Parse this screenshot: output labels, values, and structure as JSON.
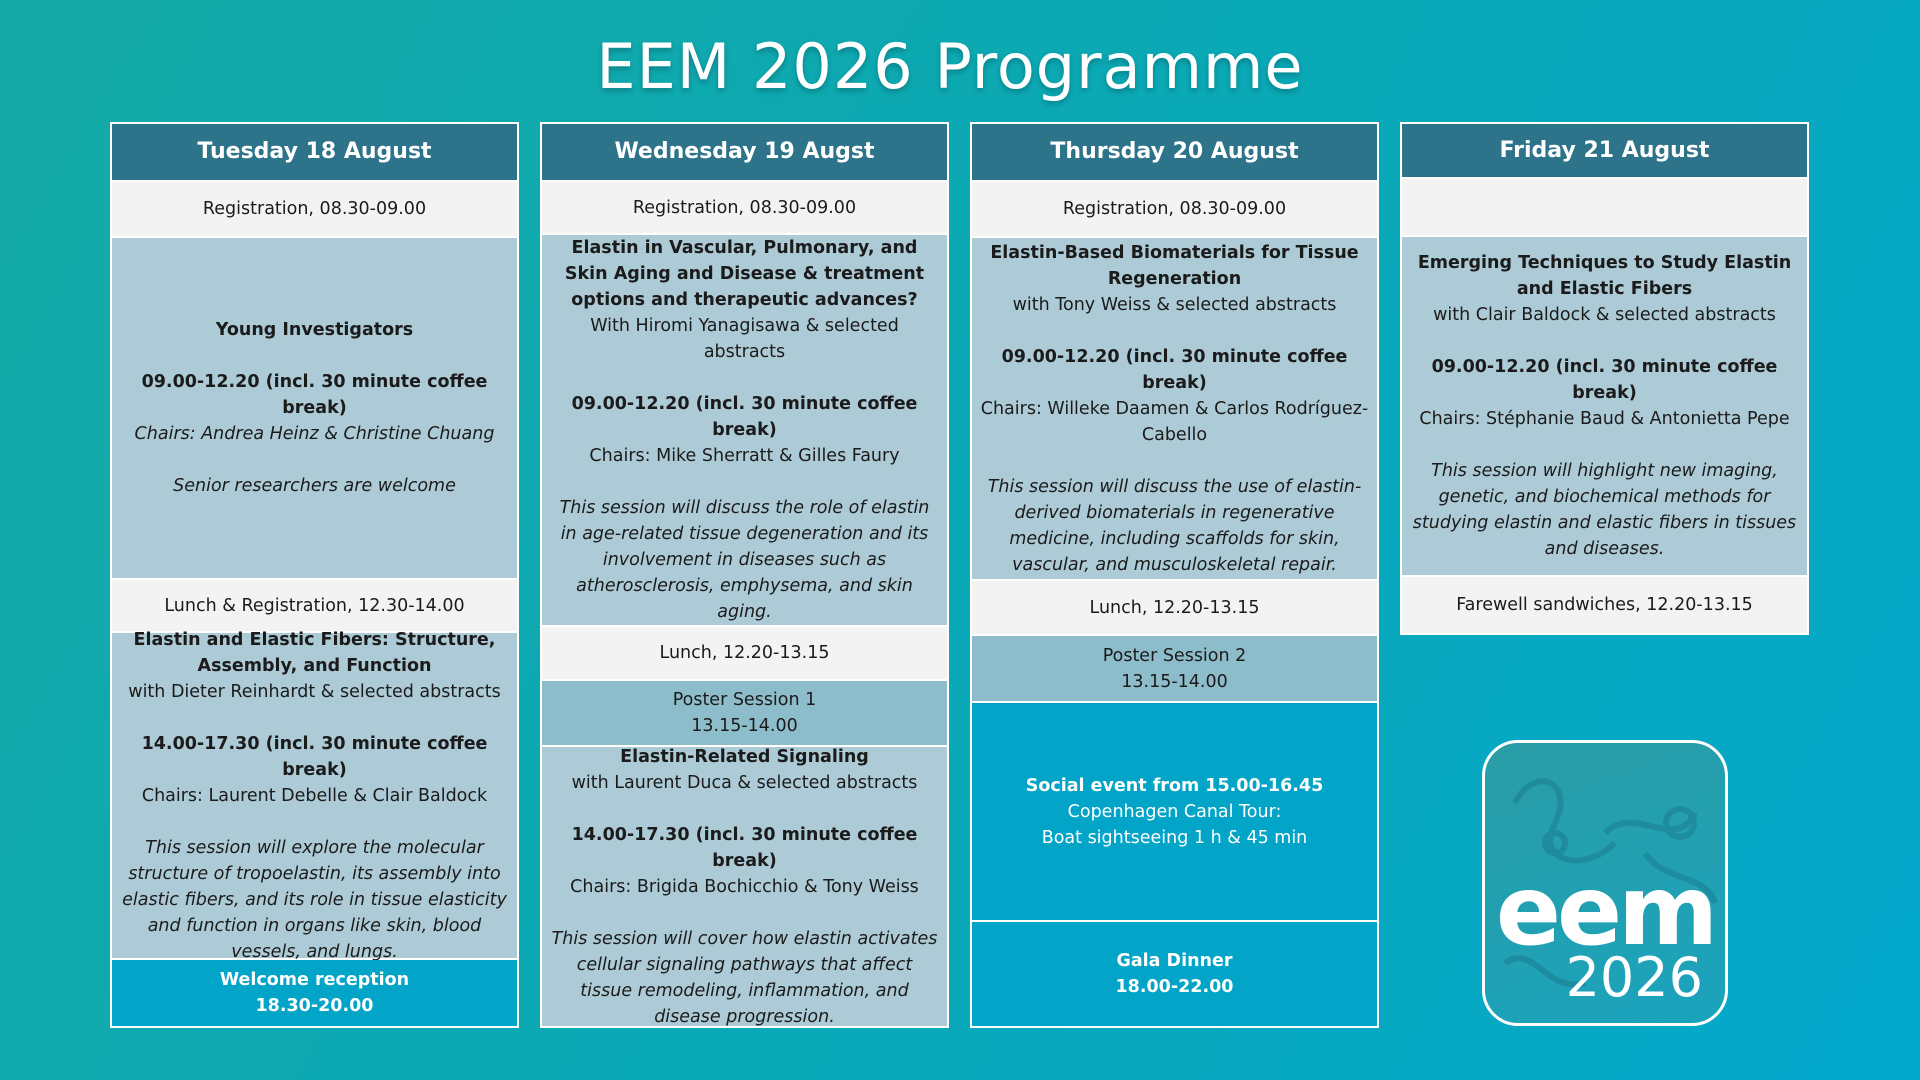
{
  "title": "EEM 2026 Programme",
  "days": [
    {
      "header": "Tuesday 18 August",
      "blocks": [
        {
          "lines": [
            "Registration, 08.30-09.00"
          ]
        },
        {
          "lines": [
            "Young Investigators",
            "09.00-12.20 (incl. 30 minute coffee break)",
            "Chairs: Andrea Heinz & Christine Chuang",
            "Senior researchers are welcome"
          ]
        },
        {
          "lines": [
            "Lunch & Registration, 12.30-14.00"
          ]
        },
        {
          "lines": [
            "Elastin and Elastic Fibers: Structure, Assembly, and Function",
            "with Dieter Reinhardt & selected abstracts",
            "14.00-17.30 (incl. 30 minute coffee break)",
            "Chairs: Laurent Debelle & Clair Baldock",
            "This session will explore the molecular structure of tropoelastin, its assembly into elastic fibers, and its role in tissue elasticity and function in organs like skin, blood vessels, and lungs."
          ]
        },
        {
          "lines": [
            "Welcome reception",
            "18.30-20.00"
          ]
        }
      ]
    },
    {
      "header": "Wednesday 19 Augst",
      "blocks": [
        {
          "lines": [
            "Registration, 08.30-09.00"
          ]
        },
        {
          "lines": [
            "Elastin in Vascular, Pulmonary, and Skin Aging and Disease & treatment options and therapeutic advances?",
            "With Hiromi Yanagisawa & selected abstracts",
            "09.00-12.20 (incl. 30 minute coffee break)",
            "Chairs: Mike Sherratt & Gilles Faury",
            "This session will discuss the role of elastin in age-related tissue degeneration and its involvement in diseases such as atherosclerosis, emphysema, and skin aging."
          ]
        },
        {
          "lines": [
            "Lunch, 12.20-13.15"
          ]
        },
        {
          "lines": [
            "Poster Session 1",
            "13.15-14.00"
          ]
        },
        {
          "lines": [
            "Elastin-Related Signaling",
            "with Laurent Duca & selected abstracts",
            "14.00-17.30 (incl. 30 minute coffee break)",
            "Chairs: Brigida Bochicchio & Tony Weiss",
            "This session will cover how elastin activates cellular signaling pathways that affect tissue remodeling, inflammation, and disease progression."
          ]
        }
      ]
    },
    {
      "header": "Thursday 20 August",
      "blocks": [
        {
          "lines": [
            "Registration, 08.30-09.00"
          ]
        },
        {
          "lines": [
            "Elastin-Based Biomaterials for Tissue Regeneration",
            "with Tony Weiss & selected abstracts",
            "09.00-12.20 (incl. 30 minute coffee break)",
            "Chairs: Willeke Daamen & Carlos Rodríguez-Cabello",
            "This session will discuss the use of elastin-derived biomaterials in regenerative medicine, including scaffolds for skin, vascular, and musculoskeletal repair."
          ]
        },
        {
          "lines": [
            "Lunch, 12.20-13.15"
          ]
        },
        {
          "lines": [
            "Poster Session 2",
            "13.15-14.00"
          ]
        },
        {
          "lines": [
            "Social event from 15.00-16.45",
            "Copenhagen Canal Tour:",
            "Boat sightseeing 1 h & 45 min"
          ]
        },
        {
          "lines": [
            "Gala Dinner",
            "18.00-22.00"
          ]
        }
      ]
    },
    {
      "header": "Friday 21 August",
      "blocks": [
        {
          "lines": [
            "Emerging Techniques to Study Elastin and Elastic Fibers",
            "with Clair Baldock & selected abstracts",
            "09.00-12.20 (incl. 30 minute coffee break)",
            "Chairs: Stéphanie Baud & Antonietta Pepe",
            "This session will highlight new imaging, genetic, and biochemical methods for studying elastin and elastic fibers in tissues and diseases."
          ]
        },
        {
          "lines": [
            "Farewell sandwiches, 12.20-13.15"
          ]
        }
      ]
    }
  ],
  "logo": {
    "name": "eem",
    "year": "2026"
  }
}
